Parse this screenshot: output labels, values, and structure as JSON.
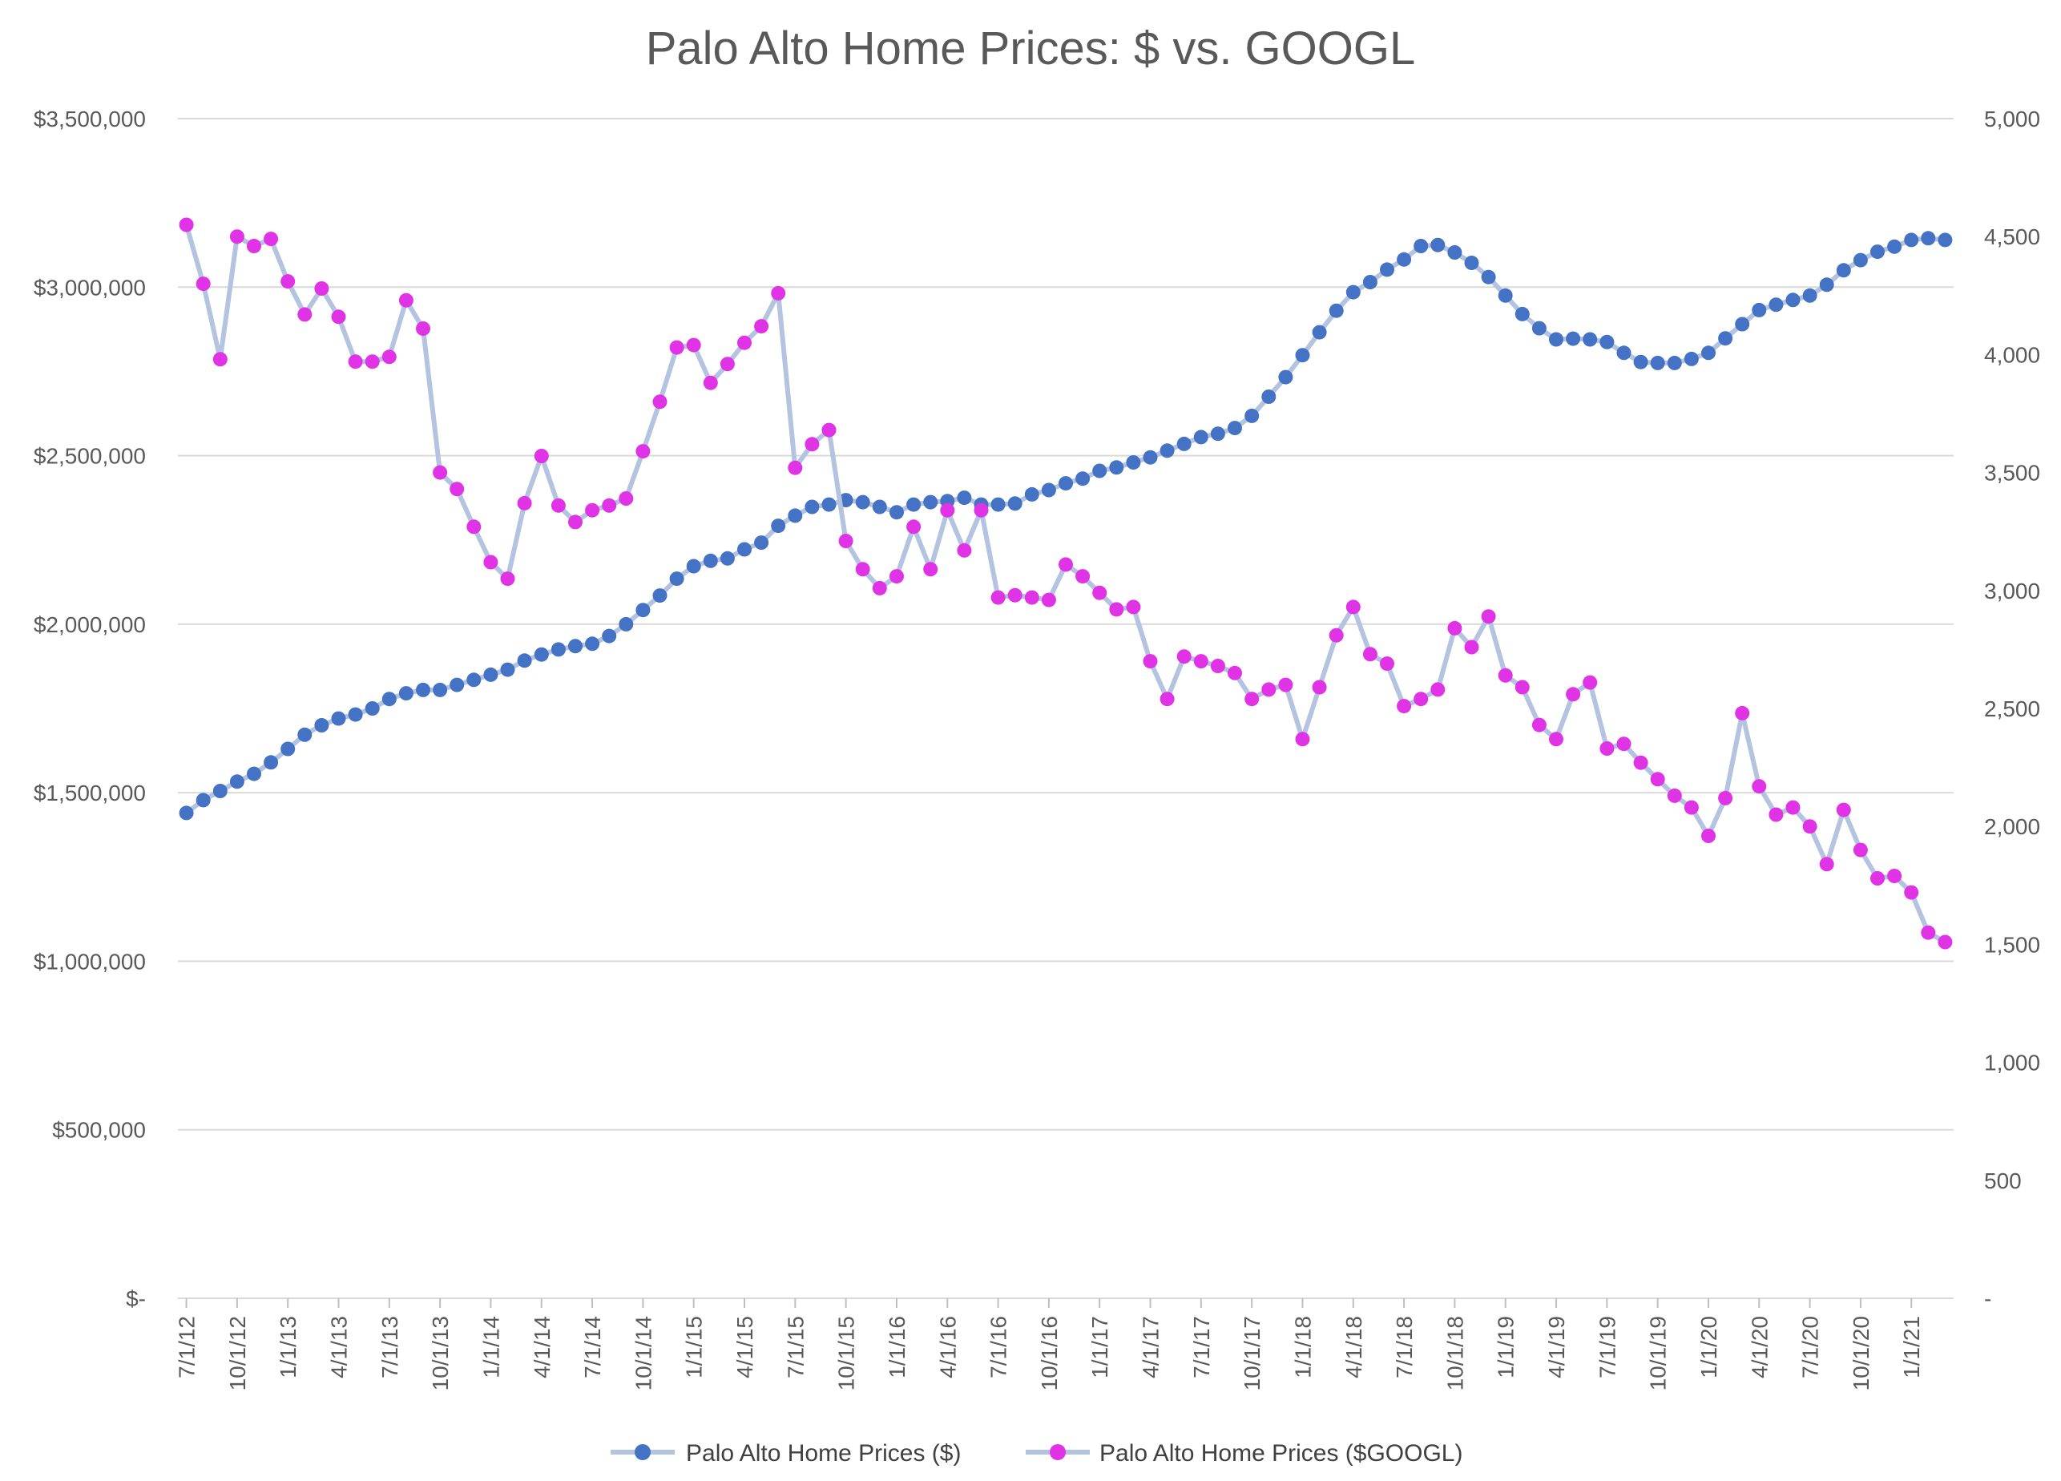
{
  "chart_data": {
    "type": "line",
    "title": "Palo Alto Home Prices: $ vs. GOOGL",
    "x_tick_labels": [
      "7/1/12",
      "10/1/12",
      "1/1/13",
      "4/1/13",
      "7/1/13",
      "10/1/13",
      "1/1/14",
      "4/1/14",
      "7/1/14",
      "10/1/14",
      "1/1/15",
      "4/1/15",
      "7/1/15",
      "10/1/15",
      "1/1/16",
      "4/1/16",
      "7/1/16",
      "10/1/16",
      "1/1/17",
      "4/1/17",
      "7/1/17",
      "10/1/17",
      "1/1/18",
      "4/1/18",
      "7/1/18",
      "10/1/18",
      "1/1/19",
      "4/1/19",
      "7/1/19",
      "10/1/19",
      "1/1/20",
      "4/1/20",
      "7/1/20",
      "10/1/20",
      "1/1/21"
    ],
    "x_start": "7/1/12",
    "x_end": "4/1/21",
    "left_axis": {
      "ylim": [
        0,
        3500000
      ],
      "tick_values": [
        0,
        500000,
        1000000,
        1500000,
        2000000,
        2500000,
        3000000,
        3500000
      ],
      "tick_labels": [
        "$-",
        "$500,000",
        "$1,000,000",
        "$1,500,000",
        "$2,000,000",
        "$2,500,000",
        "$3,000,000",
        "$3,500,000"
      ]
    },
    "right_axis": {
      "ylim": [
        0,
        5000
      ],
      "tick_values": [
        0,
        500,
        1000,
        1500,
        2000,
        2500,
        3000,
        3500,
        4000,
        4500,
        5000
      ],
      "tick_labels": [
        "-",
        "500",
        "1,000",
        "1,500",
        "2,000",
        "2,500",
        "3,000",
        "3,500",
        "4,000",
        "4,500",
        "5,000"
      ]
    },
    "grid": "horizontal",
    "legend_position": "bottom",
    "series": [
      {
        "name": "Palo Alto Home Prices ($)",
        "axis": "left",
        "marker_color": "#4472c4",
        "line_color": "#b4c3e0",
        "values": [
          1440000,
          1478000,
          1505000,
          1533000,
          1556000,
          1590000,
          1630000,
          1672000,
          1700000,
          1720000,
          1732000,
          1750000,
          1778000,
          1795000,
          1805000,
          1805000,
          1820000,
          1835000,
          1850000,
          1865000,
          1892000,
          1910000,
          1925000,
          1935000,
          1942000,
          1965000,
          2000000,
          2042000,
          2085000,
          2135000,
          2172000,
          2188000,
          2195000,
          2222000,
          2242000,
          2292000,
          2322000,
          2348000,
          2355000,
          2368000,
          2362000,
          2348000,
          2332000,
          2355000,
          2362000,
          2365000,
          2375000,
          2355000,
          2355000,
          2358000,
          2385000,
          2398000,
          2418000,
          2432000,
          2455000,
          2465000,
          2480000,
          2495000,
          2515000,
          2535000,
          2555000,
          2565000,
          2582000,
          2618000,
          2675000,
          2733000,
          2798000,
          2866000,
          2930000,
          2985000,
          3015000,
          3052000,
          3082000,
          3122000,
          3125000,
          3103000,
          3072000,
          3030000,
          2975000,
          2920000,
          2878000,
          2845000,
          2847000,
          2845000,
          2837000,
          2805000,
          2778000,
          2775000,
          2775000,
          2787000,
          2805000,
          2848000,
          2890000,
          2932000,
          2948000,
          2962000,
          2975000,
          3007000,
          3050000,
          3080000,
          3105000,
          3120000,
          3140000,
          3145000,
          3140000
        ]
      },
      {
        "name": "Palo Alto Home Prices ($GOOGL)",
        "axis": "right",
        "marker_color": "#e033e6",
        "line_color": "#b4c3e0",
        "values": [
          4550,
          4300,
          3980,
          4500,
          4460,
          4490,
          4310,
          4170,
          4280,
          4160,
          3970,
          3970,
          3990,
          4230,
          4110,
          3500,
          3430,
          3270,
          3120,
          3050,
          3370,
          3570,
          3360,
          3290,
          3340,
          3360,
          3390,
          3590,
          3800,
          4030,
          4040,
          3880,
          3960,
          4050,
          4120,
          4260,
          3520,
          3620,
          3680,
          3210,
          3090,
          3010,
          3060,
          3270,
          3090,
          3340,
          3170,
          3340,
          2970,
          2980,
          2970,
          2960,
          3110,
          3060,
          2990,
          2920,
          2930,
          2700,
          2540,
          2720,
          2700,
          2680,
          2650,
          2540,
          2580,
          2600,
          2370,
          2590,
          2810,
          2930,
          2730,
          2690,
          2510,
          2540,
          2580,
          2840,
          2760,
          2890,
          2640,
          2590,
          2430,
          2370,
          2560,
          2610,
          2330,
          2350,
          2270,
          2200,
          2130,
          2080,
          1960,
          2120,
          2480,
          2170,
          2050,
          2080,
          2000,
          1840,
          2070,
          1900,
          1780,
          1790,
          1720,
          1550,
          1510
        ]
      }
    ]
  }
}
